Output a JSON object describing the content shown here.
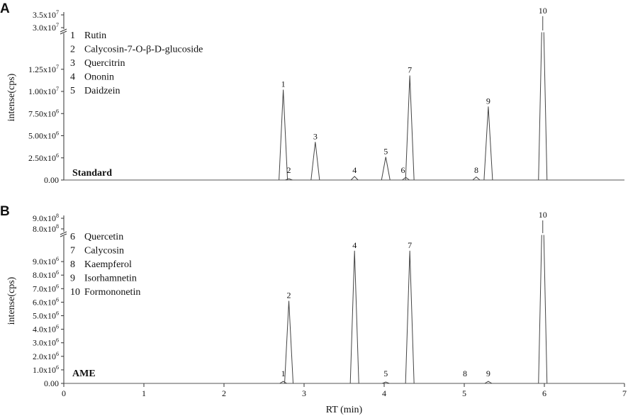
{
  "chart_data": [
    {
      "type": "line",
      "panel_label": "A",
      "sample_label": "Standard",
      "ylabel": "intense(cps)",
      "xlabel": "",
      "xlim": [
        0,
        7
      ],
      "axis_break": true,
      "lower_ylim": [
        0,
        14000000
      ],
      "upper_ylim": [
        30000000,
        35000000
      ],
      "yticks_lower": [
        {
          "value": 0,
          "label": "0.00",
          "sup": ""
        },
        {
          "value": 2500000,
          "label": "2.50x10",
          "sup": "6"
        },
        {
          "value": 5000000,
          "label": "5.00x10",
          "sup": "6"
        },
        {
          "value": 7500000,
          "label": "7.50x10",
          "sup": "6"
        },
        {
          "value": 10000000,
          "label": "1.00x10",
          "sup": "7"
        },
        {
          "value": 12500000,
          "label": "1.25x10",
          "sup": "7"
        }
      ],
      "yticks_upper": [
        {
          "value": 30000000,
          "label": "3.0x10",
          "sup": "7"
        },
        {
          "value": 35000000,
          "label": "3.5x10",
          "sup": "7"
        }
      ],
      "legend": [
        {
          "num": "1",
          "name": "Rutin"
        },
        {
          "num": "2",
          "name": "Calycosin-7-O-β-D-glucoside"
        },
        {
          "num": "3",
          "name": "Quercitrin"
        },
        {
          "num": "4",
          "name": "Ononin"
        },
        {
          "num": "5",
          "name": "Daidzein"
        }
      ],
      "peaks": [
        {
          "label": "1",
          "rt": 2.74,
          "height": 10200000
        },
        {
          "label": "2",
          "rt": 2.81,
          "height": 150000
        },
        {
          "label": "3",
          "rt": 3.14,
          "height": 4300000
        },
        {
          "label": "4",
          "rt": 3.63,
          "height": 400000
        },
        {
          "label": "5",
          "rt": 4.02,
          "height": 2600000
        },
        {
          "label": "6",
          "rt": 4.27,
          "height": 300000
        },
        {
          "label": "7",
          "rt": 4.32,
          "height": 11800000
        },
        {
          "label": "8",
          "rt": 5.15,
          "height": 350000
        },
        {
          "label": "9",
          "rt": 5.3,
          "height": 8300000
        },
        {
          "label": "10",
          "rt": 5.98,
          "height": 34500000
        }
      ]
    },
    {
      "type": "line",
      "panel_label": "B",
      "sample_label": "AME",
      "ylabel": "intense(cps)",
      "xlabel": "RT (min)",
      "xlim": [
        0,
        7
      ],
      "xticks": [
        "0",
        "1",
        "2",
        "3",
        "4",
        "5",
        "6",
        "7"
      ],
      "axis_break": true,
      "lower_ylim": [
        0,
        10000000
      ],
      "upper_ylim": [
        800000000,
        900000000
      ],
      "yticks_lower": [
        {
          "value": 0,
          "label": "0.00",
          "sup": ""
        },
        {
          "value": 1000000,
          "label": "1.0x10",
          "sup": "6"
        },
        {
          "value": 2000000,
          "label": "2.0x10",
          "sup": "6"
        },
        {
          "value": 3000000,
          "label": "3.0x10",
          "sup": "6"
        },
        {
          "value": 4000000,
          "label": "4.0x10",
          "sup": "6"
        },
        {
          "value": 5000000,
          "label": "5.0x10",
          "sup": "6"
        },
        {
          "value": 6000000,
          "label": "6.0x10",
          "sup": "6"
        },
        {
          "value": 7000000,
          "label": "7.0x10",
          "sup": "6"
        },
        {
          "value": 8000000,
          "label": "8.0x10",
          "sup": "6"
        },
        {
          "value": 9000000,
          "label": "9.0x10",
          "sup": "6"
        }
      ],
      "yticks_upper": [
        {
          "value": 800000000,
          "label": "8.0x10",
          "sup": "8"
        },
        {
          "value": 900000000,
          "label": "9.0x10",
          "sup": "8"
        }
      ],
      "legend": [
        {
          "num": "6",
          "name": "Quercetin"
        },
        {
          "num": "7",
          "name": "Calycosin"
        },
        {
          "num": "8",
          "name": "Kaempferol"
        },
        {
          "num": "9",
          "name": "Isorhamnetin"
        },
        {
          "num": "10",
          "name": "Formononetin"
        }
      ],
      "peaks": [
        {
          "label": "1",
          "rt": 2.74,
          "height": 150000
        },
        {
          "label": "2",
          "rt": 2.81,
          "height": 6100000
        },
        {
          "label": "4",
          "rt": 3.63,
          "height": 9800000
        },
        {
          "label": "5",
          "rt": 4.02,
          "height": 100000
        },
        {
          "label": "7",
          "rt": 4.32,
          "height": 9800000
        },
        {
          "label": "8",
          "rt": 5.15,
          "height": 0
        },
        {
          "label": "9",
          "rt": 5.3,
          "height": 150000
        },
        {
          "label": "10",
          "rt": 5.98,
          "height": 880000000
        }
      ]
    }
  ]
}
